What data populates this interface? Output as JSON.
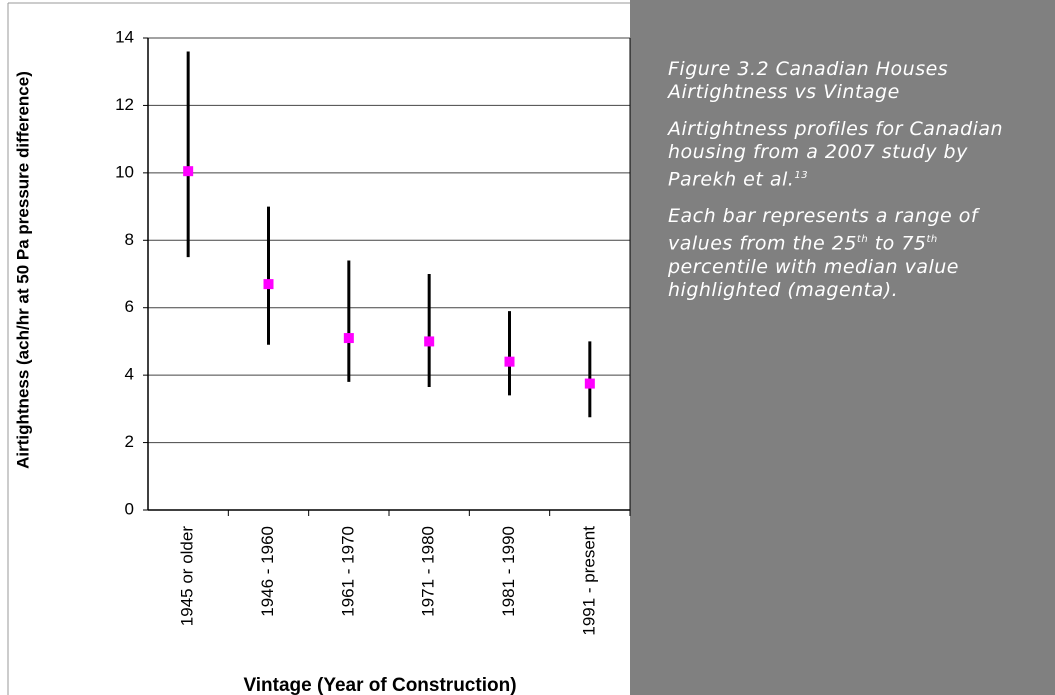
{
  "chart_data": {
    "type": "range",
    "ylabel": "Airtightness (ach/hr at 50 Pa pressure difference)",
    "xlabel": "Vintage (Year of Construction)",
    "categories": [
      "1945 or older",
      "1946 - 1960",
      "1961 - 1970",
      "1971 - 1980",
      "1981 - 1990",
      "1991 - present"
    ],
    "low": [
      7.5,
      4.9,
      3.8,
      3.65,
      3.4,
      2.75
    ],
    "high": [
      13.6,
      9.0,
      7.4,
      7.0,
      5.9,
      5.0
    ],
    "median": [
      10.05,
      6.7,
      5.1,
      5.0,
      4.4,
      3.75
    ],
    "bar_color": "#000000",
    "median_color": "#ff00ff",
    "ylim": [
      0,
      14
    ],
    "yticks": [
      0,
      2,
      4,
      6,
      8,
      10,
      12,
      14
    ],
    "grid": true
  },
  "caption": {
    "title": "Figure 3.2 Canadian Houses Airtightness vs Vintage",
    "paragraphs": [
      [
        {
          "text": "Airtightness profiles for Canadian housing from a 2007 study by Parekh et al."
        },
        {
          "sup": "13"
        }
      ],
      [
        {
          "text": "Each bar represents a range of values from the 25"
        },
        {
          "sup": "th"
        },
        {
          "text": " to 75"
        },
        {
          "sup": "th"
        },
        {
          "text": " percentile with median value highlighted (magenta)."
        }
      ]
    ]
  }
}
